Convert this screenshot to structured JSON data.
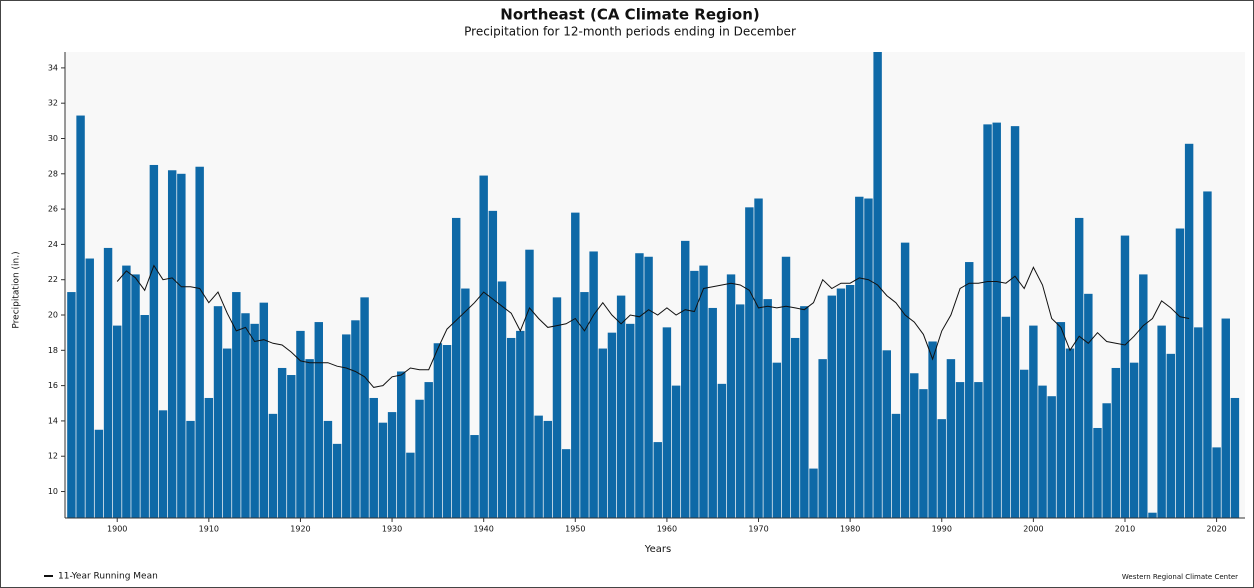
{
  "chart_data": {
    "type": "bar",
    "title": "Northeast (CA Climate Region)",
    "subtitle": "Precipitation for 12-month periods ending in December",
    "x_label": "Years",
    "y_label": "Precipitation (in.)",
    "credit": "Western Regional Climate Center",
    "color": "#0e69a7",
    "x": [
      1895,
      1896,
      1897,
      1898,
      1899,
      1900,
      1901,
      1902,
      1903,
      1904,
      1905,
      1906,
      1907,
      1908,
      1909,
      1910,
      1911,
      1912,
      1913,
      1914,
      1915,
      1916,
      1917,
      1918,
      1919,
      1920,
      1921,
      1922,
      1923,
      1924,
      1925,
      1926,
      1927,
      1928,
      1929,
      1930,
      1931,
      1932,
      1933,
      1934,
      1935,
      1936,
      1937,
      1938,
      1939,
      1940,
      1941,
      1942,
      1943,
      1944,
      1945,
      1946,
      1947,
      1948,
      1949,
      1950,
      1951,
      1952,
      1953,
      1954,
      1955,
      1956,
      1957,
      1958,
      1959,
      1960,
      1961,
      1962,
      1963,
      1964,
      1965,
      1966,
      1967,
      1968,
      1969,
      1970,
      1971,
      1972,
      1973,
      1974,
      1975,
      1976,
      1977,
      1978,
      1979,
      1980,
      1981,
      1982,
      1983,
      1984,
      1985,
      1986,
      1987,
      1988,
      1989,
      1990,
      1991,
      1992,
      1993,
      1994,
      1995,
      1996,
      1997,
      1998,
      1999,
      2000,
      2001,
      2002,
      2003,
      2004,
      2005,
      2006,
      2007,
      2008,
      2009,
      2010,
      2011,
      2012,
      2013,
      2014,
      2015,
      2016,
      2017,
      2018,
      2019,
      2020,
      2021,
      2022
    ],
    "values": [
      21.3,
      31.3,
      23.2,
      13.5,
      23.8,
      19.4,
      22.8,
      22.3,
      20.0,
      28.5,
      14.6,
      28.2,
      28.0,
      14.0,
      28.4,
      15.3,
      20.5,
      18.1,
      21.3,
      20.1,
      19.5,
      20.7,
      14.4,
      17.0,
      16.6,
      19.1,
      17.5,
      19.6,
      14.0,
      12.7,
      18.9,
      19.7,
      21.0,
      15.3,
      13.9,
      14.5,
      16.8,
      12.2,
      15.2,
      16.2,
      18.4,
      18.3,
      25.5,
      21.5,
      13.2,
      27.9,
      25.9,
      21.9,
      18.7,
      19.1,
      23.7,
      14.3,
      14.0,
      21.0,
      12.4,
      25.8,
      21.3,
      23.6,
      18.1,
      19.0,
      21.1,
      19.5,
      23.5,
      23.3,
      12.8,
      19.3,
      16.0,
      24.2,
      22.5,
      22.8,
      20.4,
      16.1,
      22.3,
      20.6,
      26.1,
      26.6,
      20.9,
      17.3,
      23.3,
      18.7,
      20.5,
      11.3,
      17.5,
      21.1,
      21.5,
      21.7,
      26.7,
      26.6,
      34.9,
      18.0,
      14.4,
      24.1,
      16.7,
      15.8,
      18.5,
      14.1,
      17.5,
      16.2,
      23.0,
      16.2,
      30.8,
      30.9,
      19.9,
      30.7,
      16.9,
      19.4,
      16.0,
      15.4,
      19.6,
      18.1,
      25.5,
      21.2,
      13.6,
      15.0,
      17.0,
      24.5,
      17.3,
      22.3,
      8.8,
      19.4,
      17.8,
      24.9,
      29.7,
      19.3,
      27.0,
      12.5,
      19.8,
      15.3
    ],
    "series": [
      {
        "name": "11-Year Running Mean",
        "type": "line",
        "color": "#111111",
        "values": [
          null,
          null,
          null,
          null,
          null,
          21.9,
          22.5,
          22.1,
          21.4,
          22.8,
          22.0,
          22.1,
          21.6,
          21.6,
          21.5,
          20.7,
          21.3,
          20.1,
          19.1,
          19.3,
          18.5,
          18.6,
          18.4,
          18.3,
          17.9,
          17.4,
          17.3,
          17.3,
          17.3,
          17.1,
          17.0,
          16.8,
          16.5,
          15.9,
          16.0,
          16.5,
          16.6,
          17.0,
          16.9,
          16.9,
          18.1,
          19.2,
          19.7,
          20.2,
          20.7,
          21.3,
          20.9,
          20.5,
          20.1,
          19.1,
          20.4,
          19.8,
          19.3,
          19.4,
          19.5,
          19.8,
          19.1,
          20.0,
          20.7,
          20.0,
          19.5,
          20.0,
          19.9,
          20.3,
          20.0,
          20.4,
          20.0,
          20.3,
          20.2,
          21.5,
          21.6,
          21.7,
          21.8,
          21.7,
          21.4,
          20.4,
          20.5,
          20.4,
          20.5,
          20.4,
          20.3,
          20.7,
          22.0,
          21.5,
          21.8,
          21.8,
          22.1,
          22.0,
          21.7,
          21.1,
          20.7,
          20.0,
          19.6,
          18.9,
          17.5,
          19.1,
          20.0,
          21.5,
          21.8,
          21.8,
          21.9,
          21.9,
          21.8,
          22.2,
          21.5,
          22.7,
          21.7,
          19.8,
          19.3,
          18.0,
          18.8,
          18.4,
          19.0,
          18.5,
          18.4,
          18.3,
          18.8,
          19.4,
          19.8,
          20.8,
          20.4,
          19.9,
          19.8,
          null,
          null,
          null,
          null,
          null
        ]
      }
    ],
    "xlim": [
      1894.3,
      2023.1
    ],
    "xticks": [
      1900,
      1910,
      1920,
      1930,
      1940,
      1950,
      1960,
      1970,
      1980,
      1990,
      2000,
      2010,
      2020
    ],
    "ylim": [
      8.5,
      34.9
    ],
    "yticks": [
      10,
      12,
      14,
      16,
      18,
      20,
      22,
      24,
      26,
      28,
      30,
      32,
      34
    ]
  }
}
